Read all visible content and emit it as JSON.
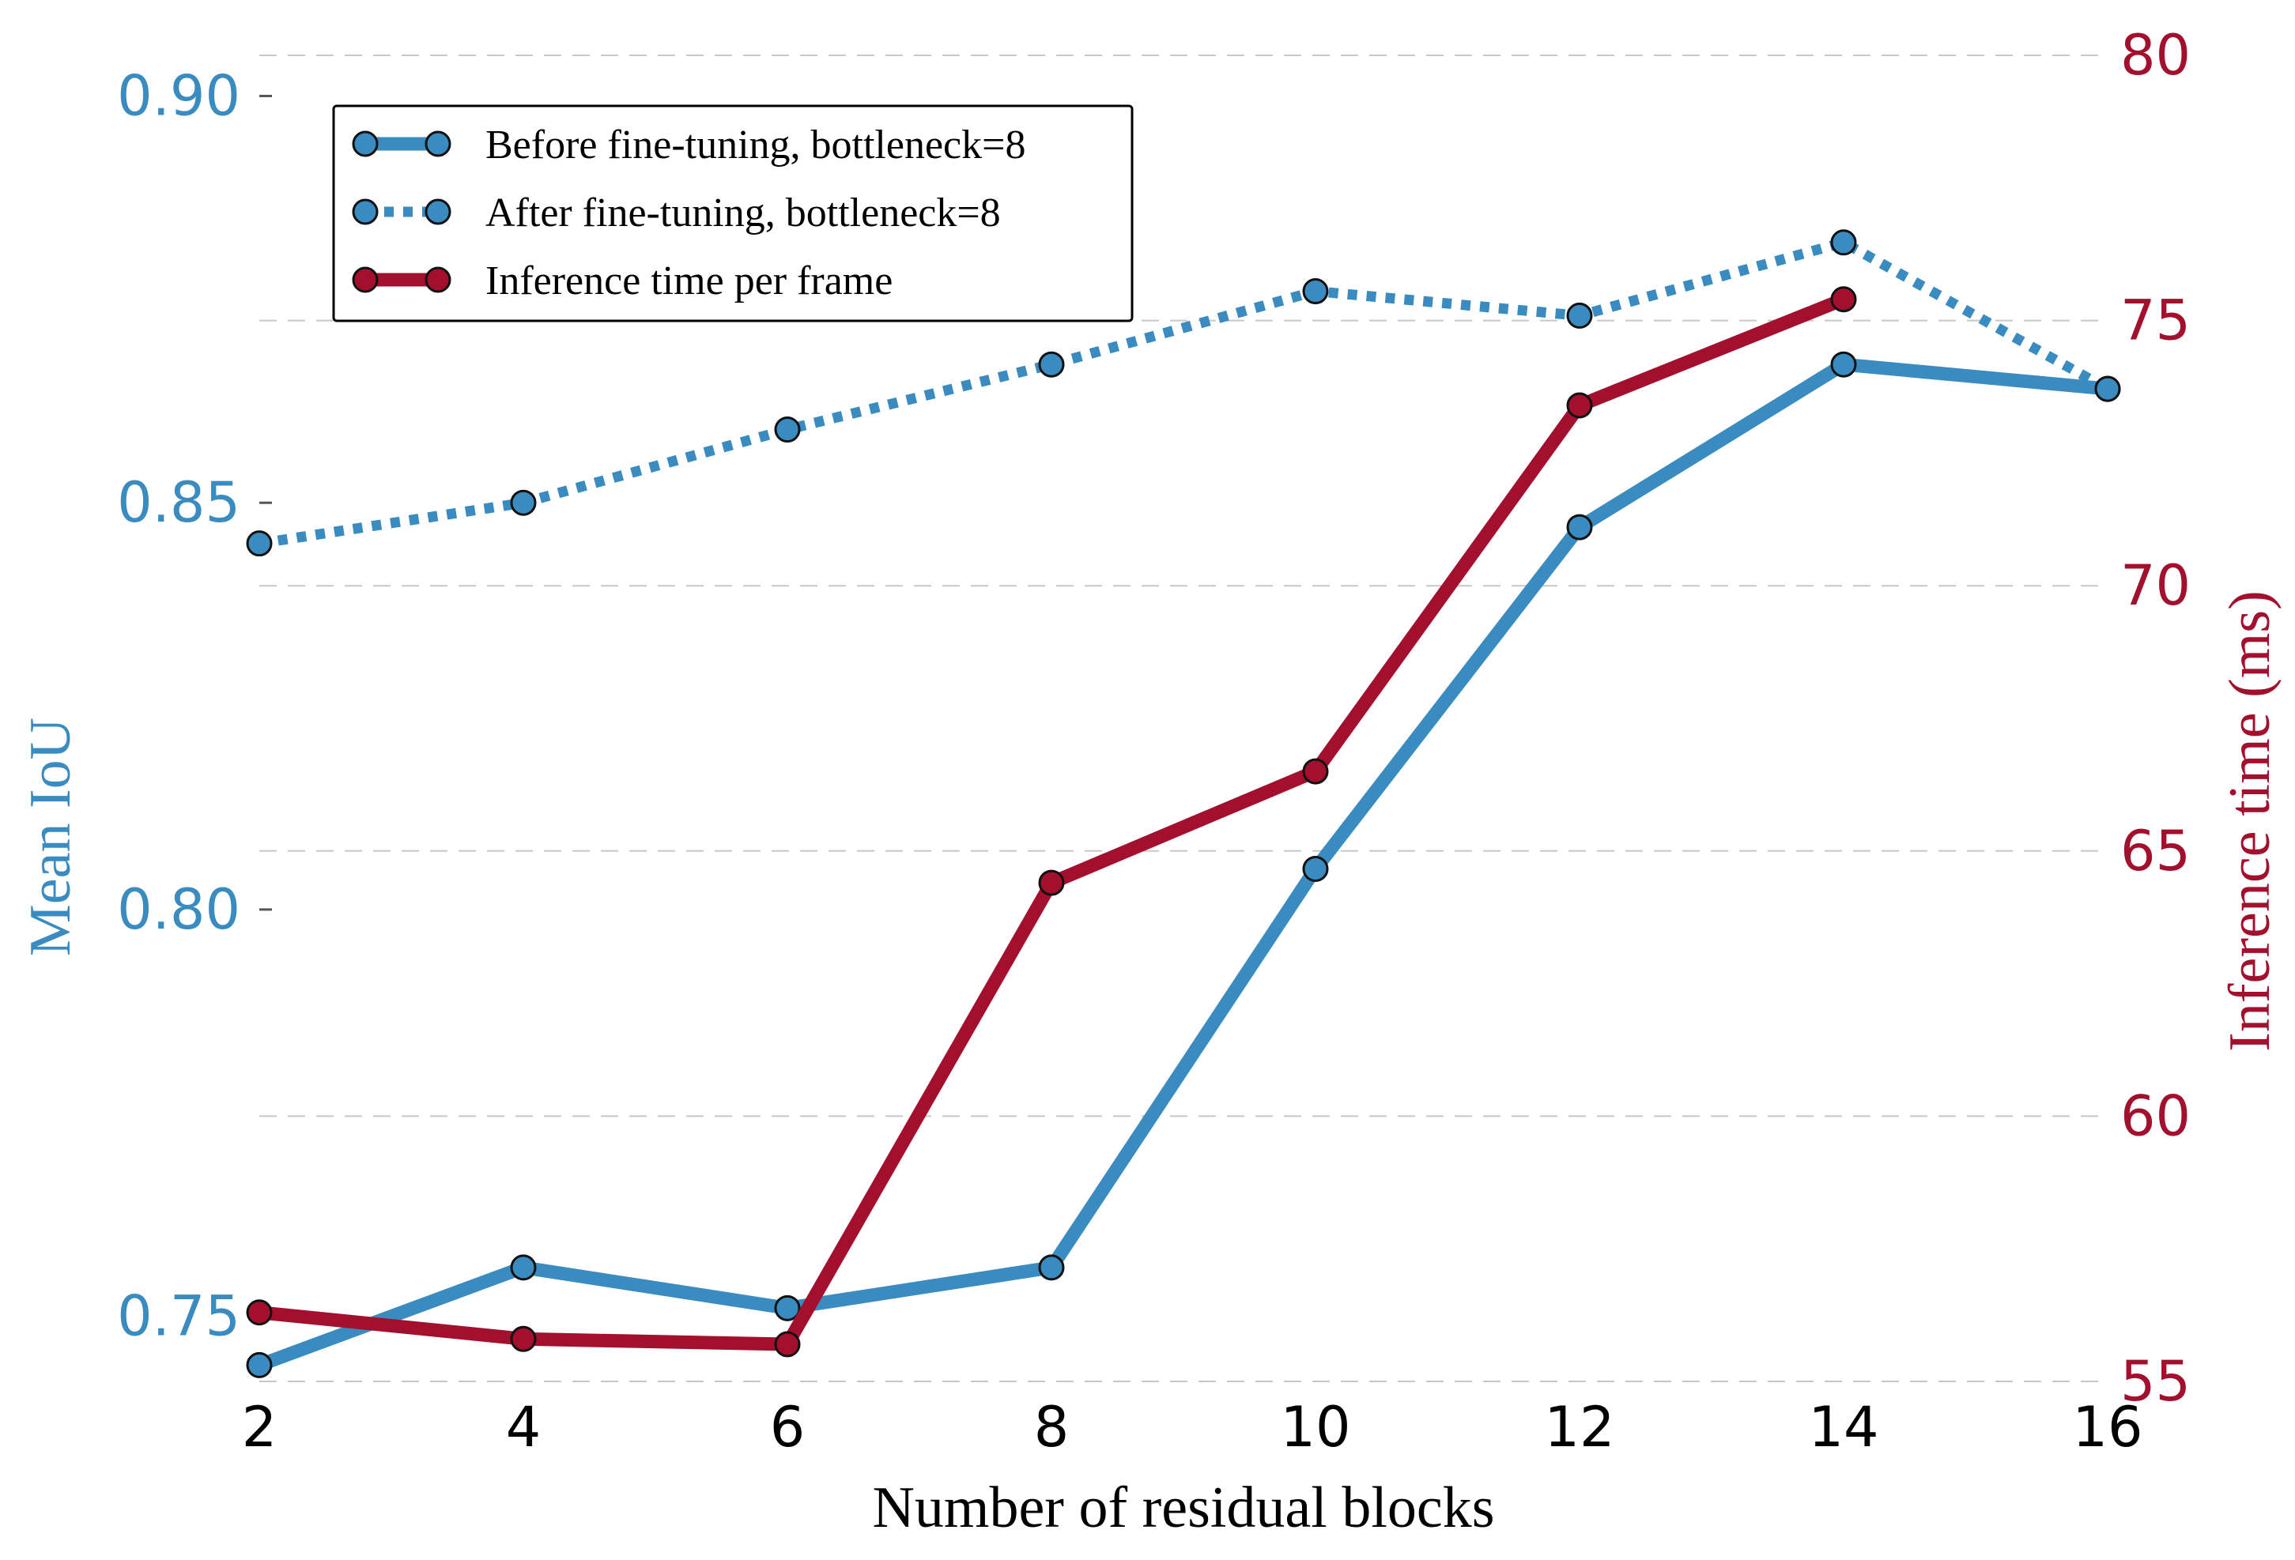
{
  "chart_data": {
    "type": "line",
    "xlabel": "Number of residual blocks",
    "x": [
      2,
      4,
      6,
      8,
      10,
      12,
      14,
      16
    ],
    "xlim": [
      2,
      16
    ],
    "xticks": [
      "2",
      "4",
      "6",
      "8",
      "10",
      "12",
      "14",
      "16"
    ],
    "left_axis": {
      "label": "Mean IoU",
      "ylim": [
        0.742,
        0.905
      ],
      "ticks": [
        "0.75",
        "0.80",
        "0.85",
        "0.90"
      ],
      "tick_values": [
        0.75,
        0.8,
        0.85,
        0.9
      ],
      "color": "#3a8cc0"
    },
    "right_axis": {
      "label": "Inference time (ms)",
      "ylim": [
        55,
        80
      ],
      "ticks": [
        "55",
        "60",
        "65",
        "70",
        "75",
        "80"
      ],
      "tick_values": [
        55,
        60,
        65,
        70,
        75,
        80
      ],
      "color": "#a3102e"
    },
    "grid": "horizontal-dashed",
    "legend_position": "top-left",
    "series": [
      {
        "name": "Before fine-tuning, bottleneck=8",
        "axis": "left",
        "style": "solid",
        "color": "#3a8cc0",
        "values": [
          0.744,
          0.756,
          0.751,
          0.756,
          0.805,
          0.847,
          0.867,
          0.864
        ]
      },
      {
        "name": "After fine-tuning, bottleneck=8",
        "axis": "left",
        "style": "dotted",
        "color": "#3a8cc0",
        "values": [
          0.845,
          0.85,
          0.859,
          0.867,
          0.876,
          0.873,
          0.882,
          0.864
        ]
      },
      {
        "name": "Inference time per frame",
        "axis": "right",
        "style": "solid",
        "color": "#a3102e",
        "x": [
          2,
          4,
          6,
          8,
          10,
          12,
          14
        ],
        "values": [
          56.3,
          55.8,
          55.7,
          64.4,
          66.5,
          73.4,
          75.4
        ]
      }
    ]
  }
}
